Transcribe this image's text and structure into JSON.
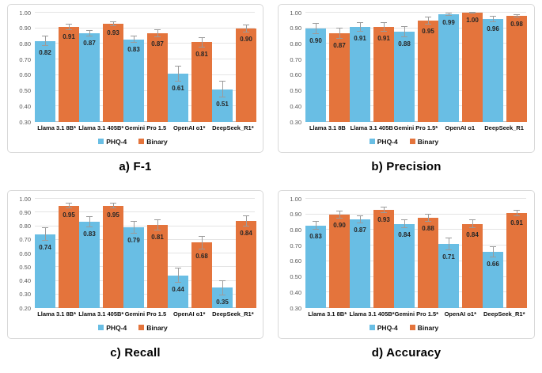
{
  "figure": {
    "description": "Four grouped bar charts comparing PHQ-4 and Binary prompting across five LLMs",
    "background": "#ffffff"
  },
  "colors": {
    "phq4": "#69BEE4",
    "binary": "#E4743C",
    "error_bar": "#9b9b9b",
    "gridline": "#e4e4e4",
    "axis_line": "#c0c0c0",
    "panel_border": "#d8d8d8",
    "tick_text": "#595959",
    "value_text": "#262626"
  },
  "legend": {
    "items": [
      {
        "label": "PHQ-4",
        "color": "#69BEE4"
      },
      {
        "label": "Binary",
        "color": "#E4743C"
      }
    ]
  },
  "chart_data": [
    {
      "type": "bar",
      "title": "a) F-1",
      "ylim": [
        0.3,
        1.0
      ],
      "ytick_step": 0.1,
      "grid": true,
      "legend_position": "bottom",
      "categories": [
        "Llama 3.1 8B*",
        "Llama 3.1 405B*",
        "Gemini Pro 1.5",
        "OpenAI o1*",
        "DeepSeek_R1*"
      ],
      "series": [
        {
          "name": "PHQ-4",
          "values": [
            0.82,
            0.87,
            0.83,
            0.61,
            0.51
          ],
          "errors": [
            0.035,
            0.02,
            0.025,
            0.05,
            0.055
          ]
        },
        {
          "name": "Binary",
          "values": [
            0.91,
            0.93,
            0.87,
            0.81,
            0.9
          ],
          "errors": [
            0.02,
            0.015,
            0.025,
            0.035,
            0.025
          ]
        }
      ]
    },
    {
      "type": "bar",
      "title": "b) Precision",
      "ylim": [
        0.3,
        1.0
      ],
      "ytick_step": 0.1,
      "grid": true,
      "legend_position": "bottom",
      "categories": [
        "Llama 3.1 8B",
        "Llama 3.1 405B",
        "Gemini Pro 1.5*",
        "OpenAI o1",
        "DeepSeek_R1"
      ],
      "series": [
        {
          "name": "PHQ-4",
          "values": [
            0.9,
            0.91,
            0.88,
            0.99,
            0.96
          ],
          "errors": [
            0.035,
            0.03,
            0.035,
            0.01,
            0.02
          ]
        },
        {
          "name": "Binary",
          "values": [
            0.87,
            0.91,
            0.95,
            1.0,
            0.98
          ],
          "errors": [
            0.035,
            0.03,
            0.025,
            0.005,
            0.01
          ]
        }
      ]
    },
    {
      "type": "bar",
      "title": "c) Recall",
      "ylim": [
        0.2,
        1.0
      ],
      "ytick_step": 0.1,
      "grid": true,
      "legend_position": "bottom",
      "categories": [
        "Llama 3.1 8B*",
        "Llama 3.1 405B*",
        "Gemini Pro 1.5",
        "OpenAI o1*",
        "DeepSeek_R1*"
      ],
      "series": [
        {
          "name": "PHQ-4",
          "values": [
            0.74,
            0.83,
            0.79,
            0.44,
            0.35
          ],
          "errors": [
            0.05,
            0.04,
            0.045,
            0.055,
            0.055
          ]
        },
        {
          "name": "Binary",
          "values": [
            0.95,
            0.95,
            0.81,
            0.68,
            0.84
          ],
          "errors": [
            0.02,
            0.02,
            0.04,
            0.05,
            0.04
          ]
        }
      ]
    },
    {
      "type": "bar",
      "title": "d) Accuracy",
      "ylim": [
        0.3,
        1.0
      ],
      "ytick_step": 0.1,
      "grid": true,
      "legend_position": "bottom",
      "categories": [
        "Llama 3.1 8B*",
        "Llama 3.1 405B*",
        "Gemini Pro 1.5*",
        "OpenAI o1*",
        "DeepSeek_R1*"
      ],
      "series": [
        {
          "name": "PHQ-4",
          "values": [
            0.83,
            0.87,
            0.84,
            0.71,
            0.66
          ],
          "errors": [
            0.03,
            0.025,
            0.03,
            0.04,
            0.035
          ]
        },
        {
          "name": "Binary",
          "values": [
            0.9,
            0.93,
            0.88,
            0.84,
            0.91
          ],
          "errors": [
            0.025,
            0.02,
            0.025,
            0.03,
            0.02
          ]
        }
      ]
    }
  ]
}
